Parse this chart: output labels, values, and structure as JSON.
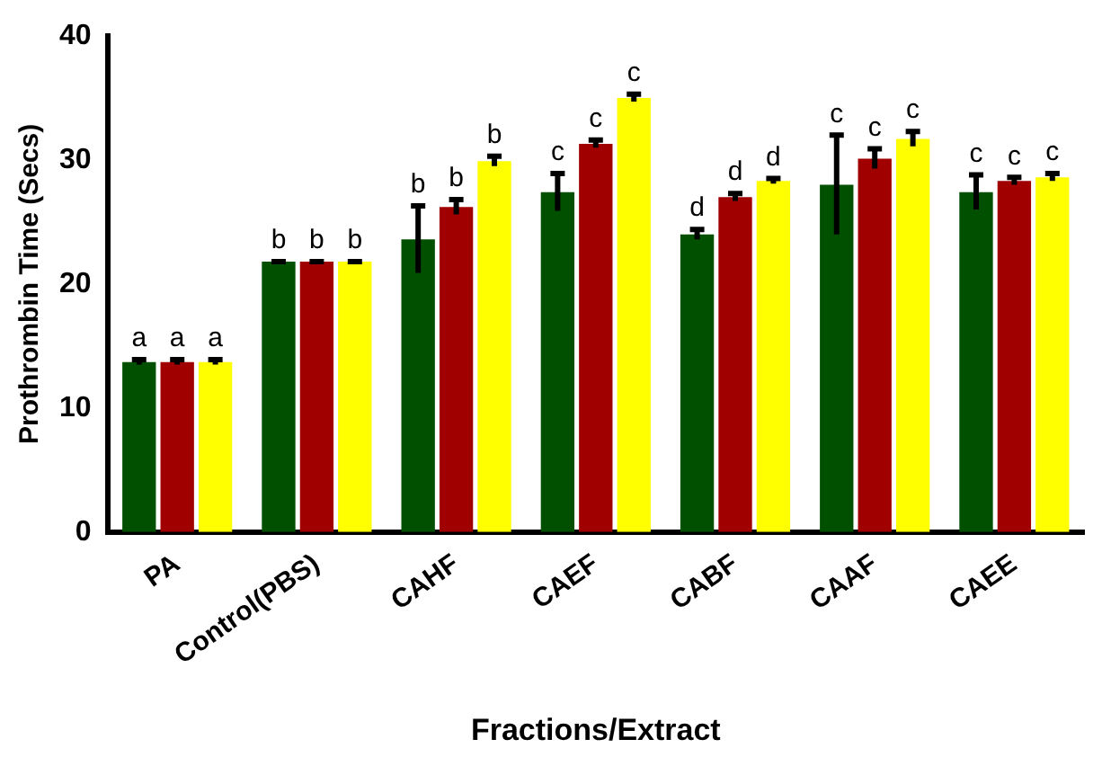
{
  "chart_data": {
    "type": "bar",
    "xlabel": "Fractions/Extract",
    "ylabel": "Prothrombin Time (Secs)",
    "categories": [
      "PA",
      "Control(PBS)",
      "CAHF",
      "CAEF",
      "CABF",
      "CAAF",
      "CAEE"
    ],
    "series": [
      {
        "color": "#005000",
        "values": [
          13.7,
          21.8,
          23.6,
          27.4,
          24.0,
          28.0,
          27.4
        ],
        "errors": [
          0.2,
          0,
          2.7,
          1.5,
          0.4,
          4.0,
          1.4
        ]
      },
      {
        "color": "#a00000",
        "values": [
          13.7,
          21.8,
          26.2,
          31.3,
          27.0,
          30.1,
          28.3
        ],
        "errors": [
          0.2,
          0,
          0.6,
          0.3,
          0.3,
          0.8,
          0.3
        ]
      },
      {
        "color": "#ffff00",
        "values": [
          13.7,
          21.8,
          29.9,
          35.0,
          28.3,
          31.7,
          28.6
        ],
        "errors": [
          0.2,
          0,
          0.4,
          0.3,
          0.2,
          0.6,
          0.3
        ]
      }
    ],
    "ylim": [
      0,
      40
    ],
    "yticks": [
      0,
      10,
      20,
      30,
      40
    ],
    "grid": false,
    "legend": false,
    "annotations": [
      "a",
      "a",
      "a",
      "b",
      "b",
      "b",
      "b",
      "b",
      "b",
      "c",
      "c",
      "c",
      "d",
      "d",
      "d",
      "c",
      "c",
      "c",
      "c",
      "c",
      "c"
    ]
  }
}
